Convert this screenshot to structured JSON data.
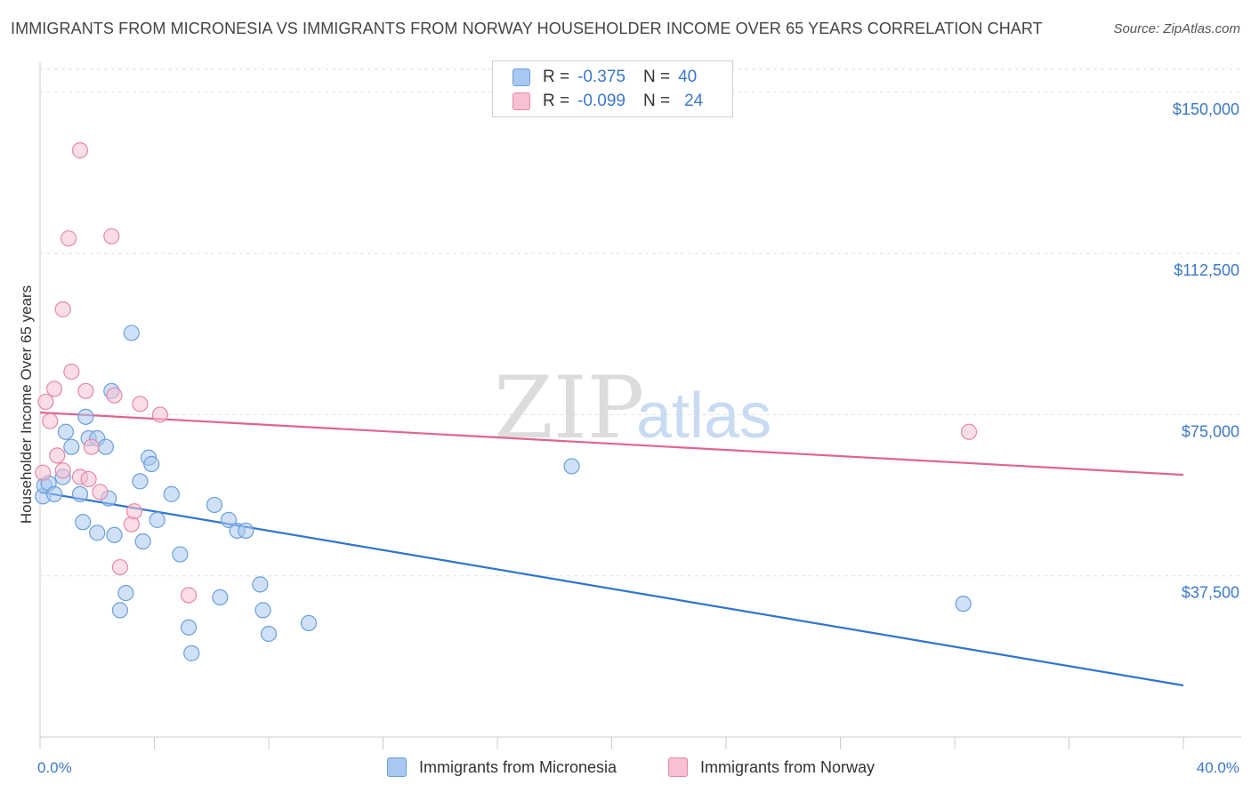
{
  "title": "IMMIGRANTS FROM MICRONESIA VS IMMIGRANTS FROM NORWAY HOUSEHOLDER INCOME OVER 65 YEARS CORRELATION CHART",
  "source": "Source: ZipAtlas.com",
  "watermark": {
    "zip": "ZIP",
    "atlas": "atlas"
  },
  "legend_top": {
    "rows": [
      {
        "r_label": "R =",
        "r_value": "-0.375",
        "n_label": "N =",
        "n_value": "40",
        "color": "#a9c8f0",
        "border": "#6a9fdc"
      },
      {
        "r_label": "R =",
        "r_value": "-0.099",
        "n_label": "N =",
        "n_value": "24",
        "color": "#f7c1d1",
        "border": "#e38aa5"
      }
    ]
  },
  "chart_data": {
    "type": "scatter",
    "title": "IMMIGRANTS FROM MICRONESIA VS IMMIGRANTS FROM NORWAY HOUSEHOLDER INCOME OVER 65 YEARS CORRELATION CHART",
    "xlabel": "",
    "ylabel": "Householder Income Over 65 years",
    "xlim": [
      0,
      40
    ],
    "ylim": [
      0,
      157000
    ],
    "x_tick_labels": [
      "0.0%",
      "40.0%"
    ],
    "y_ticks": [
      37500,
      75000,
      112500,
      150000
    ],
    "y_tick_labels": [
      "$37,500",
      "$75,000",
      "$112,500",
      "$150,000"
    ],
    "grid": true,
    "legend_position": "bottom",
    "series": [
      {
        "name": "Immigrants from Micronesia",
        "color": "#a9c8f0",
        "edge": "#6a9fdc",
        "line_color": "#2f74d0",
        "trend": {
          "x0": 0,
          "y0": 57000,
          "x1": 40,
          "y1": 12000
        },
        "points": [
          [
            0.1,
            56000
          ],
          [
            0.15,
            58500
          ],
          [
            0.3,
            59000
          ],
          [
            0.5,
            56500
          ],
          [
            0.8,
            60500
          ],
          [
            0.9,
            71000
          ],
          [
            1.1,
            67500
          ],
          [
            1.4,
            56500
          ],
          [
            1.5,
            50000
          ],
          [
            1.6,
            74500
          ],
          [
            1.7,
            69500
          ],
          [
            2.0,
            69500
          ],
          [
            2.0,
            47500
          ],
          [
            2.3,
            67500
          ],
          [
            2.4,
            55500
          ],
          [
            2.5,
            80500
          ],
          [
            2.6,
            47000
          ],
          [
            2.8,
            29500
          ],
          [
            3.0,
            33500
          ],
          [
            3.2,
            94000
          ],
          [
            3.5,
            59500
          ],
          [
            3.6,
            45500
          ],
          [
            3.8,
            65000
          ],
          [
            3.9,
            63500
          ],
          [
            4.1,
            50500
          ],
          [
            4.6,
            56500
          ],
          [
            4.9,
            42500
          ],
          [
            5.2,
            25500
          ],
          [
            5.3,
            19500
          ],
          [
            6.1,
            54000
          ],
          [
            6.3,
            32500
          ],
          [
            6.6,
            50500
          ],
          [
            6.9,
            48000
          ],
          [
            7.2,
            48000
          ],
          [
            7.7,
            35500
          ],
          [
            7.8,
            29500
          ],
          [
            8.0,
            24000
          ],
          [
            9.4,
            26500
          ],
          [
            18.6,
            63000
          ],
          [
            32.3,
            31000
          ]
        ]
      },
      {
        "name": "Immigrants from Norway",
        "color": "#f7c1d1",
        "edge": "#e38aa5",
        "line_color": "#e0658c",
        "trend": {
          "x0": 0,
          "y0": 75500,
          "x1": 40,
          "y1": 61000
        },
        "points": [
          [
            0.1,
            61500
          ],
          [
            0.2,
            78000
          ],
          [
            0.35,
            73500
          ],
          [
            0.5,
            81000
          ],
          [
            0.6,
            65500
          ],
          [
            0.8,
            99500
          ],
          [
            0.8,
            62000
          ],
          [
            1.0,
            116000
          ],
          [
            1.1,
            85000
          ],
          [
            1.4,
            60500
          ],
          [
            1.4,
            136500
          ],
          [
            1.6,
            80500
          ],
          [
            1.7,
            60000
          ],
          [
            1.8,
            67500
          ],
          [
            2.1,
            57000
          ],
          [
            2.5,
            116500
          ],
          [
            2.6,
            79500
          ],
          [
            3.2,
            49500
          ],
          [
            3.3,
            52500
          ],
          [
            3.5,
            77500
          ],
          [
            2.8,
            39500
          ],
          [
            4.2,
            75000
          ],
          [
            5.2,
            33000
          ],
          [
            32.5,
            71000
          ]
        ]
      }
    ]
  }
}
